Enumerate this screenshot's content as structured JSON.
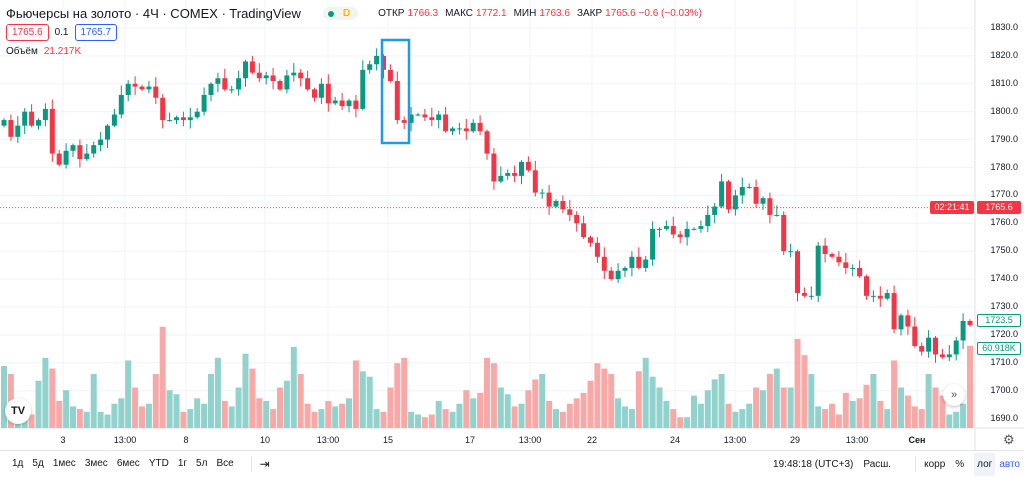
{
  "header": {
    "title": "Фьючерсы на золото · 4Ч · COMEX · TradingView",
    "delay_badge": "D",
    "ohlc": [
      {
        "k": "ОТКР",
        "v": "1766.3"
      },
      {
        "k": "МАКС",
        "v": "1772.1"
      },
      {
        "k": "МИН",
        "v": "1763.6"
      },
      {
        "k": "ЗАКР",
        "v": "1765.6 −0.6 (−0.03%)"
      }
    ],
    "bid": "1765.6",
    "spread": "0.1",
    "ask": "1765.7",
    "volume_label": "Объём",
    "volume_value": "21.217K"
  },
  "price_labels": {
    "current": "1765.6",
    "countdown": "02:21:41",
    "last": "1723.5",
    "last_volume": "60.918K"
  },
  "colors": {
    "up": "#089981",
    "down": "#f23645",
    "vol_up": "#92d2cc",
    "vol_down": "#f7a9a7",
    "highlight": "#1e9be6"
  },
  "toolbar": {
    "ranges": [
      "1д",
      "5д",
      "1мес",
      "3мес",
      "6мес",
      "YTD",
      "1г",
      "5л",
      "Все"
    ],
    "time": "19:48:18 (UTC+3)",
    "ext": "Расш.",
    "corr": "корр",
    "pct": "%",
    "log": "лог",
    "auto": "авто"
  },
  "chart_data": {
    "type": "candlestick",
    "ylim": [
      1686,
      1832
    ],
    "log_scale": false,
    "grid": true,
    "yticks": [
      1690,
      1700,
      1710,
      1720,
      1730,
      1740,
      1750,
      1760,
      1770,
      1780,
      1790,
      1800,
      1810,
      1820,
      1830
    ],
    "xtick_labels": [
      "3",
      "13:00",
      "8",
      "10",
      "13:00",
      "15",
      "17",
      "13:00",
      "22",
      "24",
      "13:00",
      "29",
      "13:00",
      "Сен"
    ],
    "current_price": 1765.6,
    "first_open": 1795,
    "close": [
      1797,
      1791,
      1795,
      1800,
      1795,
      1797,
      1801,
      1785,
      1781,
      1786,
      1788,
      1783,
      1785,
      1788,
      1790,
      1795,
      1799,
      1806,
      1810,
      1809,
      1808,
      1809,
      1805,
      1797,
      1797,
      1798,
      1797,
      1798,
      1800,
      1806,
      1810,
      1812,
      1808,
      1808,
      1812,
      1818,
      1814,
      1812,
      1813,
      1811,
      1808,
      1813,
      1814,
      1812,
      1808,
      1805,
      1810,
      1803,
      1804,
      1802,
      1804,
      1801,
      1815,
      1817,
      1820,
      1815,
      1811,
      1797,
      1796,
      1799,
      1799,
      1798,
      1797,
      1799,
      1793,
      1794,
      1794,
      1793,
      1796,
      1793,
      1785,
      1775,
      1777,
      1778,
      1777,
      1782,
      1779,
      1771,
      1771,
      1766,
      1768,
      1765,
      1763,
      1760,
      1755,
      1753,
      1748,
      1743,
      1740,
      1743,
      1744,
      1748,
      1744,
      1747,
      1758,
      1758,
      1759,
      1756,
      1755,
      1758,
      1758,
      1759,
      1763,
      1766,
      1775,
      1765,
      1770,
      1773,
      1773,
      1767,
      1769,
      1763,
      1763,
      1750,
      1750,
      1735,
      1734,
      1734,
      1752,
      1749,
      1748,
      1746,
      1744,
      1744,
      1741,
      1734,
      1734,
      1733,
      1735,
      1722,
      1727,
      1723,
      1716,
      1714,
      1719,
      1713,
      1712,
      1713,
      1718,
      1725,
      1723.5
    ],
    "volume_k": [
      46,
      40,
      18,
      14,
      10,
      35,
      52,
      44,
      20,
      28,
      16,
      14,
      12,
      40,
      12,
      10,
      18,
      22,
      50,
      30,
      16,
      18,
      40,
      75,
      28,
      25,
      12,
      14,
      22,
      18,
      40,
      52,
      20,
      16,
      30,
      55,
      44,
      22,
      20,
      14,
      30,
      35,
      60,
      40,
      18,
      12,
      14,
      20,
      16,
      18,
      22,
      50,
      42,
      38,
      14,
      12,
      30,
      48,
      52,
      12,
      10,
      8,
      10,
      20,
      14,
      12,
      18,
      28,
      22,
      26,
      52,
      48,
      30,
      25,
      16,
      18,
      28,
      36,
      40,
      20,
      14,
      12,
      18,
      22,
      26,
      35,
      48,
      44,
      40,
      22,
      16,
      14,
      42,
      52,
      38,
      30,
      20,
      14,
      8,
      8,
      24,
      18,
      28,
      36,
      40,
      18,
      12,
      14,
      18,
      30,
      28,
      40,
      44,
      30,
      30,
      66,
      54,
      40,
      16,
      14,
      18,
      10,
      26,
      20,
      22,
      32,
      40,
      20,
      14,
      50,
      30,
      24,
      16,
      14,
      40,
      30,
      24,
      10,
      12,
      18,
      60.918
    ]
  }
}
